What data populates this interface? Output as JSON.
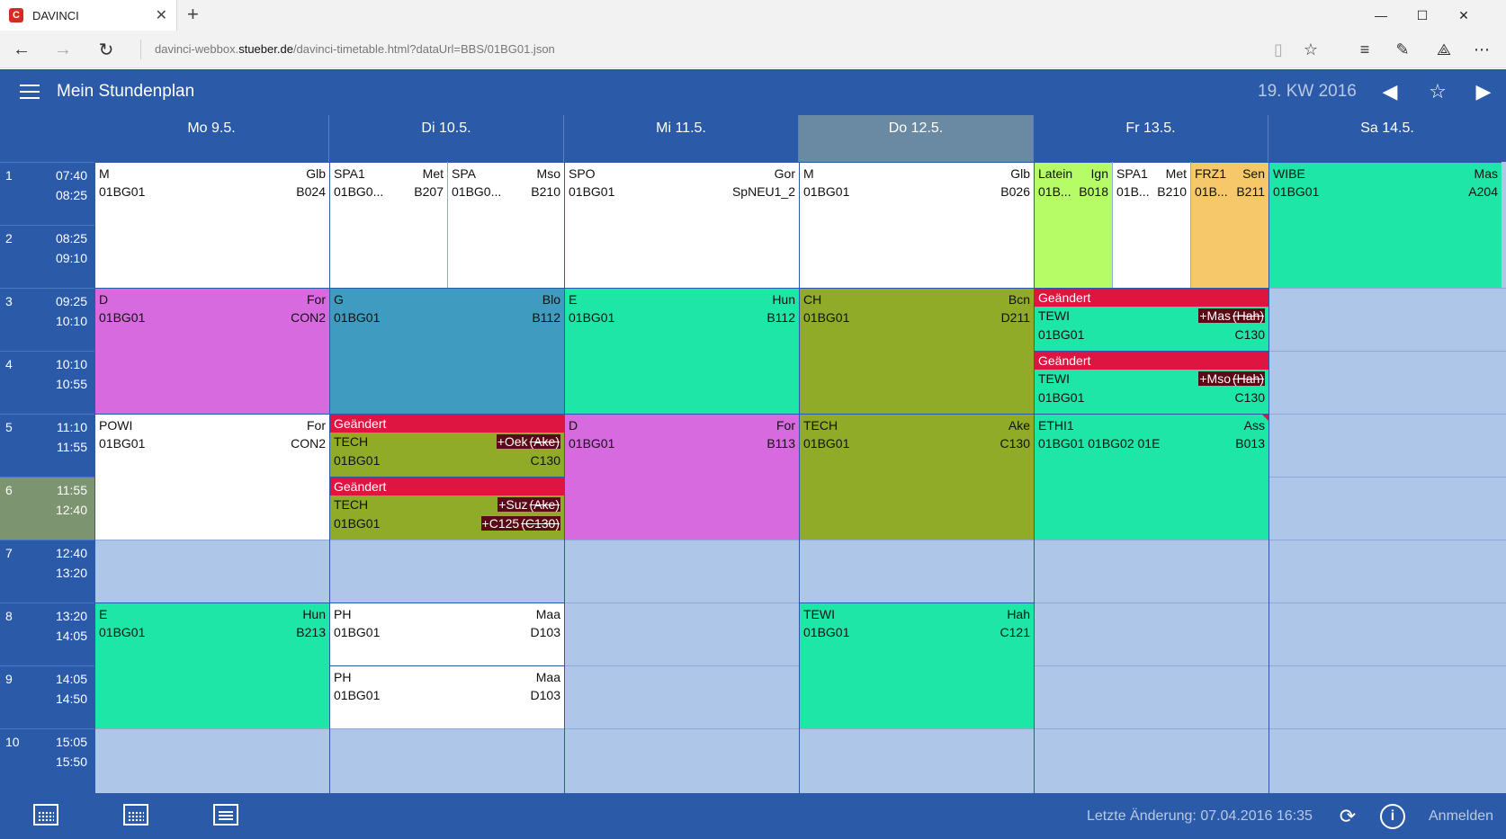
{
  "browser": {
    "tab_title": "DAVINCI",
    "favicon_letter": "C",
    "url_prefix": "davinci-webbox.",
    "url_host": "stueber.de",
    "url_path": "/davinci-timetable.html?dataUrl=BBS/01BG01.json"
  },
  "header": {
    "title": "Mein Stundenplan",
    "week": "19. KW 2016"
  },
  "days": [
    "Mo  9.5.",
    "Di  10.5.",
    "Mi  11.5.",
    "Do  12.5.",
    "Fr  13.5.",
    "Sa  14.5."
  ],
  "periods": [
    {
      "num": "1",
      "start": "07:40",
      "end": "08:25"
    },
    {
      "num": "2",
      "start": "08:25",
      "end": "09:10"
    },
    {
      "num": "3",
      "start": "09:25",
      "end": "10:10"
    },
    {
      "num": "4",
      "start": "10:10",
      "end": "10:55"
    },
    {
      "num": "5",
      "start": "11:10",
      "end": "11:55"
    },
    {
      "num": "6",
      "start": "11:55",
      "end": "12:40"
    },
    {
      "num": "7",
      "start": "12:40",
      "end": "13:20"
    },
    {
      "num": "8",
      "start": "13:20",
      "end": "14:05"
    },
    {
      "num": "9",
      "start": "14:05",
      "end": "14:50"
    },
    {
      "num": "10",
      "start": "15:05",
      "end": "15:50"
    }
  ],
  "lessons": {
    "mo_m": {
      "subject": "M",
      "teacher": "Glb",
      "class": "01BG01",
      "room": "B024"
    },
    "mo_d": {
      "subject": "D",
      "teacher": "For",
      "class": "01BG01",
      "room": "CON2"
    },
    "mo_powi": {
      "subject": "POWI",
      "teacher": "For",
      "class": "01BG01",
      "room": "CON2"
    },
    "mo_e": {
      "subject": "E",
      "teacher": "Hun",
      "class": "01BG01",
      "room": "B213"
    },
    "di_spa1": {
      "subject": "SPA1",
      "teacher": "Met",
      "class": "01BG0...",
      "room": "B207"
    },
    "di_spa": {
      "subject": "SPA",
      "teacher": "Mso",
      "class": "01BG0...",
      "room": "B210"
    },
    "di_g": {
      "subject": "G",
      "teacher": "Blo",
      "class": "01BG01",
      "room": "B112"
    },
    "di_tech1": {
      "banner": "Geändert",
      "subject": "TECH",
      "teacher_new": "+Oek",
      "teacher_old": "(Ake)",
      "class": "01BG01",
      "room": "C130"
    },
    "di_tech2": {
      "banner": "Geändert",
      "subject": "TECH",
      "teacher_new": "+Suz",
      "teacher_old": "(Ake)",
      "class": "01BG01",
      "room_new": "+C125",
      "room_old": "(C130)"
    },
    "di_ph1": {
      "subject": "PH",
      "teacher": "Maa",
      "class": "01BG01",
      "room": "D103"
    },
    "di_ph2": {
      "subject": "PH",
      "teacher": "Maa",
      "class": "01BG01",
      "room": "D103"
    },
    "mi_spo": {
      "subject": "SPO",
      "teacher": "Gor",
      "class": "01BG01",
      "room": "SpNEU1_2"
    },
    "mi_e": {
      "subject": "E",
      "teacher": "Hun",
      "class": "01BG01",
      "room": "B112"
    },
    "mi_d": {
      "subject": "D",
      "teacher": "For",
      "class": "01BG01",
      "room": "B113"
    },
    "do_m": {
      "subject": "M",
      "teacher": "Glb",
      "class": "01BG01",
      "room": "B026"
    },
    "do_ch": {
      "subject": "CH",
      "teacher": "Bcn",
      "class": "01BG01",
      "room": "D211"
    },
    "do_tech": {
      "subject": "TECH",
      "teacher": "Ake",
      "class": "01BG01",
      "room": "C130"
    },
    "do_tewi": {
      "subject": "TEWI",
      "teacher": "Hah",
      "class": "01BG01",
      "room": "C121"
    },
    "fr_latein": {
      "subject": "Latein",
      "teacher": "Ign",
      "class": "01B...",
      "room": "B018"
    },
    "fr_spa1": {
      "subject": "SPA1",
      "teacher": "Met",
      "class": "01B...",
      "room": "B210"
    },
    "fr_frz1": {
      "subject": "FRZ1",
      "teacher": "Sen",
      "class": "01B...",
      "room": "B211"
    },
    "fr_tewi1": {
      "banner": "Geändert",
      "subject": "TEWI",
      "teacher_new": "+Mas",
      "teacher_old": "(Hah)",
      "class": "01BG01",
      "room": "C130"
    },
    "fr_tewi2": {
      "banner": "Geändert",
      "subject": "TEWI",
      "teacher_new": "+Mso",
      "teacher_old": "(Hah)",
      "class": "01BG01",
      "room": "C130"
    },
    "fr_ethi1": {
      "subject": "ETHI1",
      "teacher": "Ass",
      "class": "01BG01 01BG02 01E",
      "room": "B013"
    },
    "sa_wibe": {
      "subject": "WIBE",
      "teacher": "Mas",
      "class": "01BG01",
      "room": "A204"
    }
  },
  "colors": {
    "header_blue": "#2b5ba8",
    "empty_cell": "#aec6e8",
    "changed_banner": "#dd1540",
    "current_day_header": "#6a8aa3",
    "current_period": "#7d9470"
  },
  "footer": {
    "last_change": "Letzte Änderung: 07.04.2016 16:35",
    "login": "Anmelden",
    "info_glyph": "i"
  }
}
